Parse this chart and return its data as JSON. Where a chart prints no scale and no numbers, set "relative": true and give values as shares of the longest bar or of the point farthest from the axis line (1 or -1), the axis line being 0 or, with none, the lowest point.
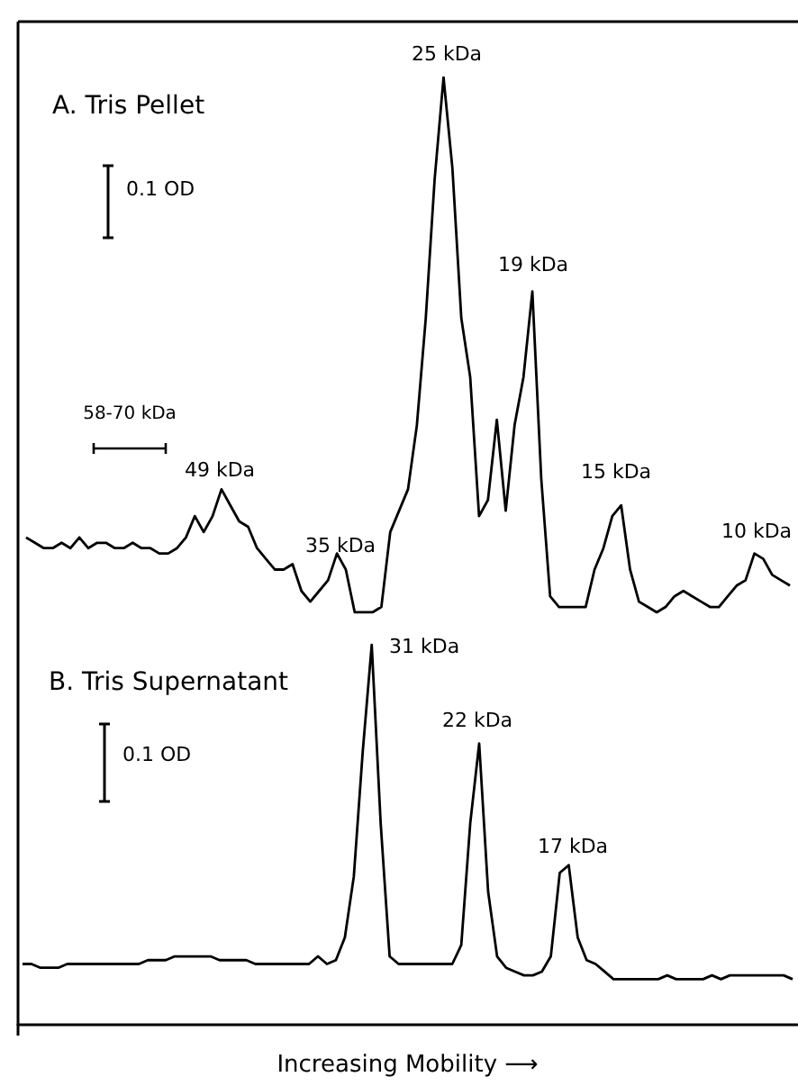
{
  "chart_data": [
    {
      "type": "line",
      "title": "A. Tris Pellet",
      "relative": true,
      "line_style": "solid",
      "categories": [
        null,
        null,
        null,
        null,
        null,
        null,
        null,
        null,
        null,
        null,
        null,
        null,
        null,
        null,
        null,
        null,
        null,
        null,
        null,
        null,
        null,
        null,
        null,
        null,
        null,
        null,
        null,
        null,
        null,
        null,
        null,
        null,
        null,
        null,
        null,
        null,
        null,
        null,
        null,
        null,
        null,
        null,
        null,
        null,
        null,
        null,
        null,
        null,
        null,
        null,
        null,
        null,
        null,
        null,
        null,
        null,
        null,
        null,
        null,
        null,
        null,
        null,
        null,
        null,
        null,
        null,
        null,
        null,
        null,
        null,
        null,
        null,
        null,
        null,
        null,
        null,
        null,
        null,
        null,
        null,
        null,
        null,
        null,
        null,
        null,
        null,
        null
      ],
      "series": [
        {
          "color": "#000000",
          "values": [
            0.14,
            0.13,
            0.12,
            0.12,
            0.13,
            0.12,
            0.14,
            0.12,
            0.13,
            0.13,
            0.12,
            0.12,
            0.13,
            0.12,
            0.12,
            0.11,
            0.11,
            0.12,
            0.14,
            0.18,
            0.15,
            0.18,
            0.23,
            0.2,
            0.17,
            0.16,
            0.12,
            0.1,
            0.08,
            0.08,
            0.09,
            0.04,
            0.02,
            0.04,
            0.06,
            0.11,
            0.08,
            0,
            0,
            0,
            0.01,
            0.15,
            0.19,
            0.23,
            0.35,
            0.55,
            0.81,
            1,
            0.83,
            0.55,
            0.44,
            0.18,
            0.21,
            0.36,
            0.19,
            0.35,
            0.44,
            0.6,
            0.25,
            0.03,
            0.01,
            0.01,
            0.01,
            0.01,
            0.08,
            0.12,
            0.18,
            0.2,
            0.08,
            0.02,
            0.01,
            0,
            0.01,
            0.03,
            0.04,
            0.03,
            0.02,
            0.01,
            0.01,
            0.03,
            0.05,
            0.06,
            0.11,
            0.1,
            0.07,
            0.06,
            0.05
          ]
        }
      ],
      "annotations": [
        "25 kDa",
        "19 kDa",
        "49 kDa",
        "35 kDa",
        "15 kDa",
        "10 kDa",
        "0.1 OD",
        "58-70 kDa"
      ]
    },
    {
      "type": "line",
      "title": "B. Tris Supernatant",
      "xlabel": "Increasing Mobility ⟶",
      "relative": true,
      "line_style": "solid",
      "categories": [
        null,
        null,
        null,
        null,
        null,
        null,
        null,
        null,
        null,
        null,
        null,
        null,
        null,
        null,
        null,
        null,
        null,
        null,
        null,
        null,
        null,
        null,
        null,
        null,
        null,
        null,
        null,
        null,
        null,
        null,
        null,
        null,
        null,
        null,
        null,
        null,
        null,
        null,
        null,
        null,
        null,
        null,
        null,
        null,
        null,
        null,
        null,
        null,
        null,
        null,
        null,
        null,
        null,
        null,
        null,
        null,
        null,
        null,
        null,
        null,
        null,
        null,
        null,
        null,
        null,
        null,
        null,
        null,
        null,
        null,
        null,
        null,
        null,
        null,
        null,
        null,
        null,
        null,
        null,
        null,
        null,
        null,
        null,
        null,
        null,
        null,
        null
      ],
      "series": [
        {
          "color": "#000000",
          "values": [
            0.16,
            0.16,
            0.15,
            0.15,
            0.15,
            0.16,
            0.16,
            0.16,
            0.16,
            0.16,
            0.16,
            0.16,
            0.16,
            0.16,
            0.17,
            0.17,
            0.17,
            0.18,
            0.18,
            0.18,
            0.18,
            0.18,
            0.17,
            0.17,
            0.17,
            0.17,
            0.16,
            0.16,
            0.16,
            0.16,
            0.16,
            0.16,
            0.16,
            0.18,
            0.16,
            0.17,
            0.23,
            0.39,
            0.72,
            1,
            0.53,
            0.18,
            0.16,
            0.16,
            0.16,
            0.16,
            0.16,
            0.16,
            0.16,
            0.21,
            0.53,
            0.74,
            0.35,
            0.18,
            0.15,
            0.14,
            0.13,
            0.13,
            0.14,
            0.18,
            0.4,
            0.42,
            0.23,
            0.17,
            0.16,
            0.14,
            0.12,
            0.12,
            0.12,
            0.12,
            0.12,
            0.12,
            0.13,
            0.12,
            0.12,
            0.12,
            0.12,
            0.13,
            0.12,
            0.13,
            0.13,
            0.13,
            0.13,
            0.13,
            0.13,
            0.13,
            0.12
          ]
        }
      ],
      "annotations": [
        "31 kDa",
        "22 kDa",
        "17 kDa",
        "0.1 OD"
      ]
    }
  ]
}
